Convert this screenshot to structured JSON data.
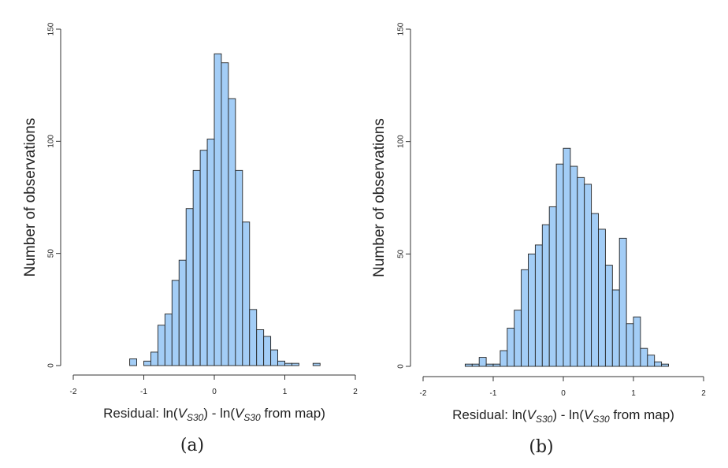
{
  "chart_data": [
    {
      "type": "bar",
      "panel_label": "(a)",
      "ylabel": "Number of observations",
      "xlabel": {
        "prefix": "Residual: ln(",
        "var1": "V",
        "sub1": "S30",
        "middle": ") - ln(",
        "var2": "V",
        "sub2": "S30",
        "suffix": " from map)"
      },
      "xlim": [
        -2,
        2
      ],
      "ylim": [
        0,
        150
      ],
      "x_ticks": [
        -2,
        -1,
        0,
        1,
        2
      ],
      "y_ticks": [
        0,
        50,
        100,
        150
      ],
      "bin_width": 0.1,
      "bins": [
        {
          "x0": -1.2,
          "x1": -1.1,
          "count": 3
        },
        {
          "x0": -1.1,
          "x1": -1.0,
          "count": 0
        },
        {
          "x0": -1.0,
          "x1": -0.9,
          "count": 2
        },
        {
          "x0": -0.9,
          "x1": -0.8,
          "count": 6
        },
        {
          "x0": -0.8,
          "x1": -0.7,
          "count": 18
        },
        {
          "x0": -0.7,
          "x1": -0.6,
          "count": 23
        },
        {
          "x0": -0.6,
          "x1": -0.5,
          "count": 38
        },
        {
          "x0": -0.5,
          "x1": -0.4,
          "count": 47
        },
        {
          "x0": -0.4,
          "x1": -0.3,
          "count": 70
        },
        {
          "x0": -0.3,
          "x1": -0.2,
          "count": 87
        },
        {
          "x0": -0.2,
          "x1": -0.1,
          "count": 96
        },
        {
          "x0": -0.1,
          "x1": 0.0,
          "count": 101
        },
        {
          "x0": 0.0,
          "x1": 0.1,
          "count": 139
        },
        {
          "x0": 0.1,
          "x1": 0.2,
          "count": 135
        },
        {
          "x0": 0.2,
          "x1": 0.3,
          "count": 119
        },
        {
          "x0": 0.3,
          "x1": 0.4,
          "count": 87
        },
        {
          "x0": 0.4,
          "x1": 0.5,
          "count": 64
        },
        {
          "x0": 0.5,
          "x1": 0.6,
          "count": 25
        },
        {
          "x0": 0.6,
          "x1": 0.7,
          "count": 16
        },
        {
          "x0": 0.7,
          "x1": 0.8,
          "count": 13
        },
        {
          "x0": 0.8,
          "x1": 0.9,
          "count": 7
        },
        {
          "x0": 0.9,
          "x1": 1.0,
          "count": 2
        },
        {
          "x0": 1.0,
          "x1": 1.1,
          "count": 1
        },
        {
          "x0": 1.1,
          "x1": 1.2,
          "count": 1
        },
        {
          "x0": 1.2,
          "x1": 1.3,
          "count": 0
        },
        {
          "x0": 1.3,
          "x1": 1.4,
          "count": 0
        },
        {
          "x0": 1.4,
          "x1": 1.5,
          "count": 1
        }
      ],
      "bar_color": "#a3cdf6",
      "grid": false
    },
    {
      "type": "bar",
      "panel_label": "(b)",
      "ylabel": "Number of observations",
      "xlabel": {
        "prefix": "Residual: ln(",
        "var1": "V",
        "sub1": "S30",
        "middle": ") - ln(",
        "var2": "V",
        "sub2": "S30",
        "suffix": " from map)"
      },
      "xlim": [
        -2,
        2
      ],
      "ylim": [
        0,
        150
      ],
      "x_ticks": [
        -2,
        -1,
        0,
        1,
        2
      ],
      "y_ticks": [
        0,
        50,
        100,
        150
      ],
      "bin_width": 0.1,
      "bins": [
        {
          "x0": -1.4,
          "x1": -1.3,
          "count": 1
        },
        {
          "x0": -1.3,
          "x1": -1.2,
          "count": 1
        },
        {
          "x0": -1.2,
          "x1": -1.1,
          "count": 4
        },
        {
          "x0": -1.1,
          "x1": -1.0,
          "count": 1
        },
        {
          "x0": -1.0,
          "x1": -0.9,
          "count": 1
        },
        {
          "x0": -0.9,
          "x1": -0.8,
          "count": 7
        },
        {
          "x0": -0.8,
          "x1": -0.7,
          "count": 17
        },
        {
          "x0": -0.7,
          "x1": -0.6,
          "count": 25
        },
        {
          "x0": -0.6,
          "x1": -0.5,
          "count": 43
        },
        {
          "x0": -0.5,
          "x1": -0.4,
          "count": 50
        },
        {
          "x0": -0.4,
          "x1": -0.3,
          "count": 54
        },
        {
          "x0": -0.3,
          "x1": -0.2,
          "count": 63
        },
        {
          "x0": -0.2,
          "x1": -0.1,
          "count": 71
        },
        {
          "x0": -0.1,
          "x1": 0.0,
          "count": 90
        },
        {
          "x0": 0.0,
          "x1": 0.1,
          "count": 97
        },
        {
          "x0": 0.1,
          "x1": 0.2,
          "count": 89
        },
        {
          "x0": 0.2,
          "x1": 0.3,
          "count": 84
        },
        {
          "x0": 0.3,
          "x1": 0.4,
          "count": 81
        },
        {
          "x0": 0.4,
          "x1": 0.5,
          "count": 68
        },
        {
          "x0": 0.5,
          "x1": 0.6,
          "count": 61
        },
        {
          "x0": 0.6,
          "x1": 0.7,
          "count": 45
        },
        {
          "x0": 0.7,
          "x1": 0.8,
          "count": 34
        },
        {
          "x0": 0.8,
          "x1": 0.9,
          "count": 57
        },
        {
          "x0": 0.9,
          "x1": 1.0,
          "count": 19
        },
        {
          "x0": 1.0,
          "x1": 1.1,
          "count": 22
        },
        {
          "x0": 1.1,
          "x1": 1.2,
          "count": 8
        },
        {
          "x0": 1.2,
          "x1": 1.3,
          "count": 5
        },
        {
          "x0": 1.3,
          "x1": 1.4,
          "count": 2
        },
        {
          "x0": 1.4,
          "x1": 1.5,
          "count": 1
        }
      ],
      "bar_color": "#a3cdf6",
      "grid": false
    }
  ]
}
